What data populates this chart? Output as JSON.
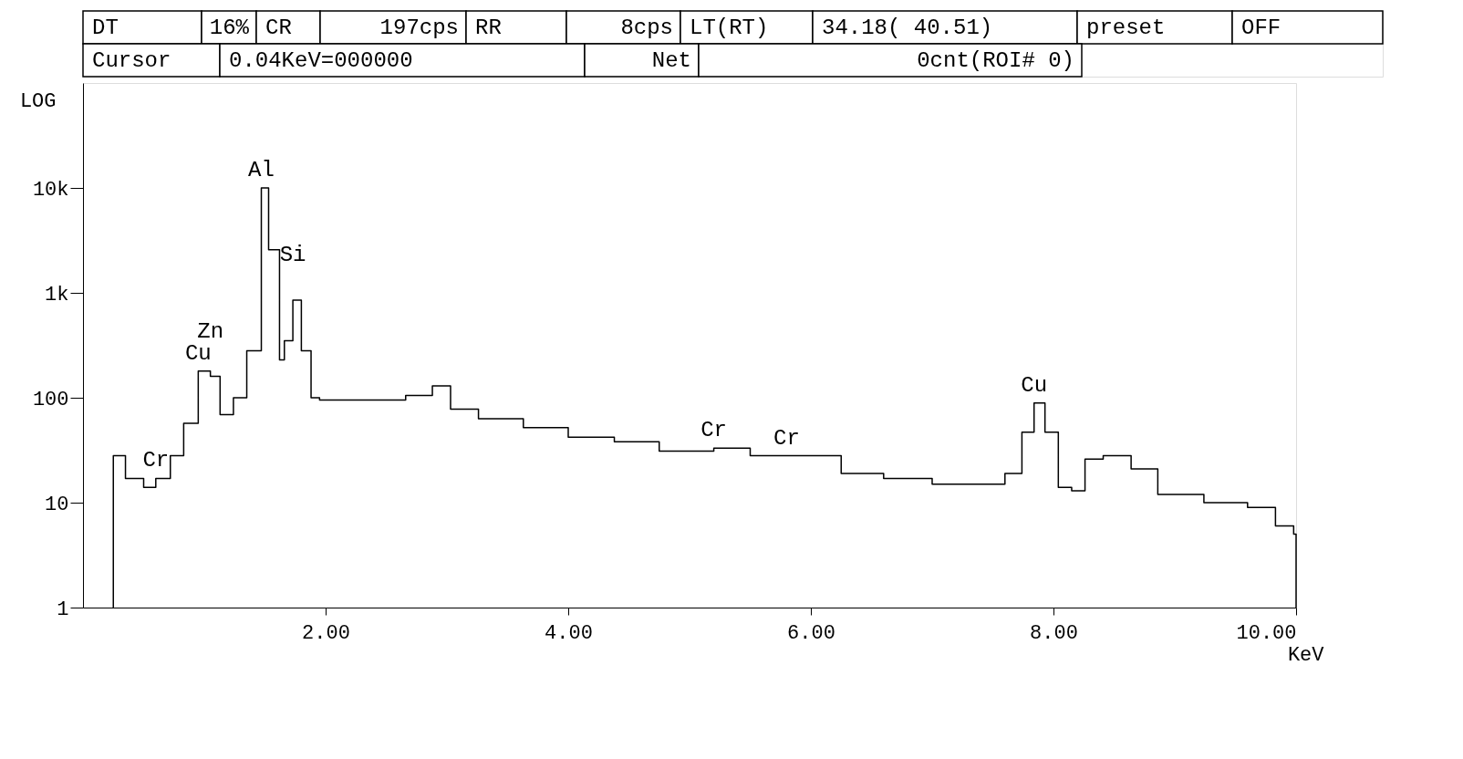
{
  "chart_data": {
    "type": "step",
    "xlabel": "KeV",
    "ylabel": "LOG",
    "log": "y",
    "grid": false,
    "legend": false,
    "line_style": "solid",
    "marker": "none",
    "xlim": [
      0,
      10
    ],
    "xticks": [
      {
        "value": 2,
        "label": "2.00"
      },
      {
        "value": 4,
        "label": "4.00"
      },
      {
        "value": 6,
        "label": "6.00"
      },
      {
        "value": 8,
        "label": "8.00"
      },
      {
        "value": 10,
        "label": "10.00"
      }
    ],
    "ylim": [
      1,
      100000
    ],
    "yticks": [
      1,
      10,
      100,
      {
        "value": 1000,
        "label": "1k"
      },
      {
        "value": 10000,
        "label": "10k"
      }
    ],
    "x": [
      0.25,
      0.25,
      0.35,
      0.5,
      0.6,
      0.72,
      0.83,
      0.95,
      1.05,
      1.13,
      1.24,
      1.35,
      1.47,
      1.53,
      1.62,
      1.66,
      1.73,
      1.8,
      1.88,
      1.95,
      2.28,
      2.66,
      2.88,
      3.03,
      3.26,
      3.63,
      4.0,
      4.38,
      4.75,
      5.2,
      5.5,
      5.8,
      6.25,
      6.6,
      7.0,
      7.37,
      7.6,
      7.74,
      7.84,
      7.93,
      8.04,
      8.15,
      8.26,
      8.41,
      8.64,
      8.86,
      9.24,
      9.6,
      9.83,
      9.98,
      10.0
    ],
    "series": [
      {
        "color": "#000000",
        "values": [
          1,
          28,
          17,
          14,
          17,
          28,
          57,
          180,
          160,
          69,
          100,
          280,
          10000,
          2570,
          230,
          350,
          850,
          280,
          100,
          95,
          95,
          105,
          130,
          78,
          63,
          52,
          42,
          38,
          31,
          33,
          28,
          28,
          19,
          17,
          15,
          15,
          19,
          47,
          89,
          47,
          14,
          13,
          26,
          28,
          21,
          12,
          10,
          9,
          6,
          5,
          1
        ]
      }
    ],
    "annotations": [
      "DT",
      "16%",
      "CR",
      "197cps",
      "RR",
      "8cps",
      "LT(RT)",
      "34.18( 40.51)",
      "preset",
      "OFF",
      "Cursor",
      "0.04KeV=000000",
      "Net",
      "0cnt(ROI#  0)",
      {
        "text": "Al",
        "x": 1.47,
        "y": 10000
      },
      {
        "text": "Si",
        "x": 1.73,
        "y": 850
      },
      {
        "text": "Cr",
        "x": 0.6,
        "y": 17
      },
      {
        "text": "Cu",
        "x": 0.95,
        "y": 180
      },
      {
        "text": "Zn",
        "x": 1.05,
        "y": 160
      },
      {
        "text": "Cr",
        "x": 5.2,
        "y": 33
      },
      {
        "text": "Cr",
        "x": 5.8,
        "y": 28
      },
      {
        "text": "Cu",
        "x": 7.84,
        "y": 89
      }
    ]
  }
}
